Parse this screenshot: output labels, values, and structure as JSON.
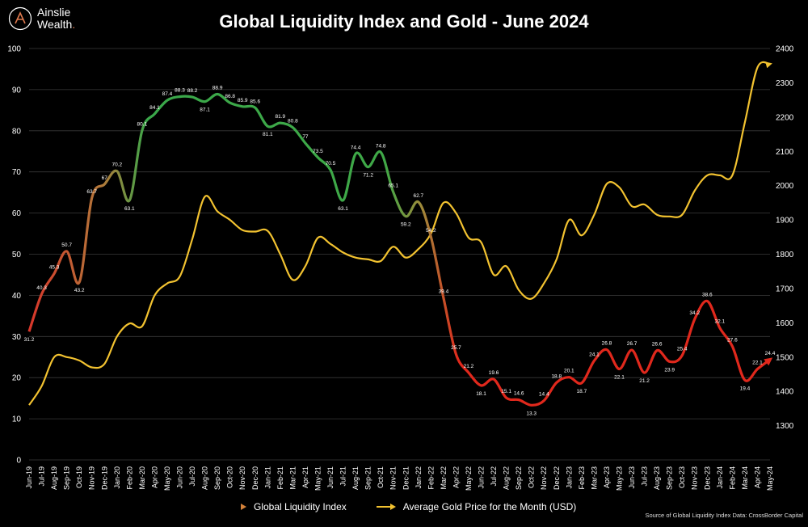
{
  "brand": {
    "name_line1": "Ainslie",
    "name_line2": "Wealth",
    "dot": "."
  },
  "title": "Global Liquidity Index and Gold - June 2024",
  "legend": {
    "gli_label": "Global Liquidity Index",
    "gold_label": "Average Gold Price for the Month (USD)"
  },
  "source": "Source of Global Liquidity Index Data: CrossBorder Capital",
  "colors": {
    "background": "#000000",
    "gold_line": "#f2c230",
    "gli_green": "#2ea043",
    "gli_red": "#e0281c",
    "grid": "#3a3a3a",
    "logo_accent": "#e07a4f"
  },
  "chart_data": {
    "type": "line",
    "title": "Global Liquidity Index and Gold - June 2024",
    "categories": [
      "Jun-19",
      "Jul-19",
      "Aug-19",
      "Sep-19",
      "Oct-19",
      "Nov-19",
      "Dec-19",
      "Jan-20",
      "Feb-20",
      "Mar-20",
      "Apr-20",
      "May-20",
      "Jun-20",
      "Jul-20",
      "Aug-20",
      "Sep-20",
      "Oct-20",
      "Nov-20",
      "Dec-20",
      "Jan-21",
      "Feb-21",
      "Mar-21",
      "Apr-21",
      "May-21",
      "Jun-21",
      "Jul-21",
      "Aug-21",
      "Sep-21",
      "Oct-21",
      "Nov-21",
      "Dec-21",
      "Jan-22",
      "Feb-22",
      "Mar-22",
      "Apr-22",
      "May-22",
      "Jun-22",
      "Jul-22",
      "Aug-22",
      "Sep-22",
      "Oct-22",
      "Nov-22",
      "Dec-22",
      "Jan-23",
      "Feb-23",
      "Mar-23",
      "Apr-23",
      "May-23",
      "Jun-23",
      "Jul-23",
      "Aug-23",
      "Sep-23",
      "Oct-23",
      "Nov-23",
      "Dec-23",
      "Jan-24",
      "Feb-24",
      "Mar-24",
      "Apr-24",
      "May-24"
    ],
    "y_left": {
      "min": 0,
      "max": 100,
      "ticks": [
        0,
        10,
        20,
        30,
        40,
        50,
        60,
        70,
        80,
        90,
        100
      ]
    },
    "y_right": {
      "min": 1200,
      "max": 2400,
      "ticks": [
        1300,
        1400,
        1500,
        1600,
        1700,
        1800,
        1900,
        2000,
        2100,
        2200,
        2300,
        2400
      ]
    },
    "grid": true,
    "legend_position": "bottom-center",
    "series": [
      {
        "name": "Global Liquidity Index",
        "axis": "left",
        "values": [
          31.2,
          40.3,
          45.3,
          50.7,
          43.2,
          63.7,
          67,
          70.2,
          63.1,
          80.1,
          84.1,
          87.4,
          88.3,
          88.2,
          87.1,
          88.9,
          86.8,
          85.9,
          85.6,
          81.1,
          81.9,
          80.8,
          77,
          73.5,
          70.5,
          63.1,
          74.4,
          71.2,
          74.8,
          65.1,
          59.2,
          62.7,
          54.2,
          39.4,
          25.7,
          21.2,
          18.1,
          19.6,
          15.1,
          14.6,
          13.3,
          14.4,
          18.8,
          20.1,
          18.7,
          24.1,
          26.8,
          22.1,
          26.7,
          21.2,
          26.6,
          23.9,
          25.4,
          34.2,
          38.6,
          32.1,
          27.6,
          19.4,
          22.1,
          24.4
        ],
        "labels": [
          "31.2",
          "40.3",
          "45.3",
          "50.7",
          "43.2",
          "63.7",
          "67",
          "70.2",
          "63.1",
          "80.1",
          "84.1",
          "87.4",
          "88.3",
          "88.2",
          "87.1",
          "88.9",
          "86.8",
          "85.9",
          "85.6",
          "81.1",
          "81.9",
          "80.8",
          "77",
          "73.5",
          "70.5",
          "63.1",
          "74.4",
          "71.2",
          "74.8",
          "65.1",
          "59.2",
          "62.7",
          "54.2",
          "39.4",
          "25.7",
          "21.2",
          "18.1",
          "19.6",
          "15.1",
          "14.6",
          "13.3",
          "14.4",
          "18.8",
          "20.1",
          "18.7",
          "24.1",
          "26.8",
          "22.1",
          "26.7",
          "21.2",
          "26.6",
          "23.9",
          "25.4",
          "34.2",
          "38.6",
          "32.1",
          "27.6",
          "19.4",
          "22.1",
          "24.4"
        ]
      },
      {
        "name": "Average Gold Price for the Month (USD)",
        "axis": "right",
        "values": [
          1360,
          1415,
          1500,
          1500,
          1490,
          1470,
          1480,
          1560,
          1598,
          1590,
          1680,
          1715,
          1735,
          1845,
          1968,
          1925,
          1900,
          1870,
          1866,
          1868,
          1800,
          1725,
          1765,
          1848,
          1830,
          1805,
          1790,
          1785,
          1780,
          1822,
          1790,
          1815,
          1860,
          1950,
          1920,
          1848,
          1835,
          1740,
          1765,
          1695,
          1670,
          1715,
          1785,
          1900,
          1855,
          1915,
          2005,
          1995,
          1940,
          1945,
          1915,
          1910,
          1915,
          1985,
          2030,
          2030,
          2030,
          2185,
          2345,
          2355
        ]
      }
    ]
  }
}
